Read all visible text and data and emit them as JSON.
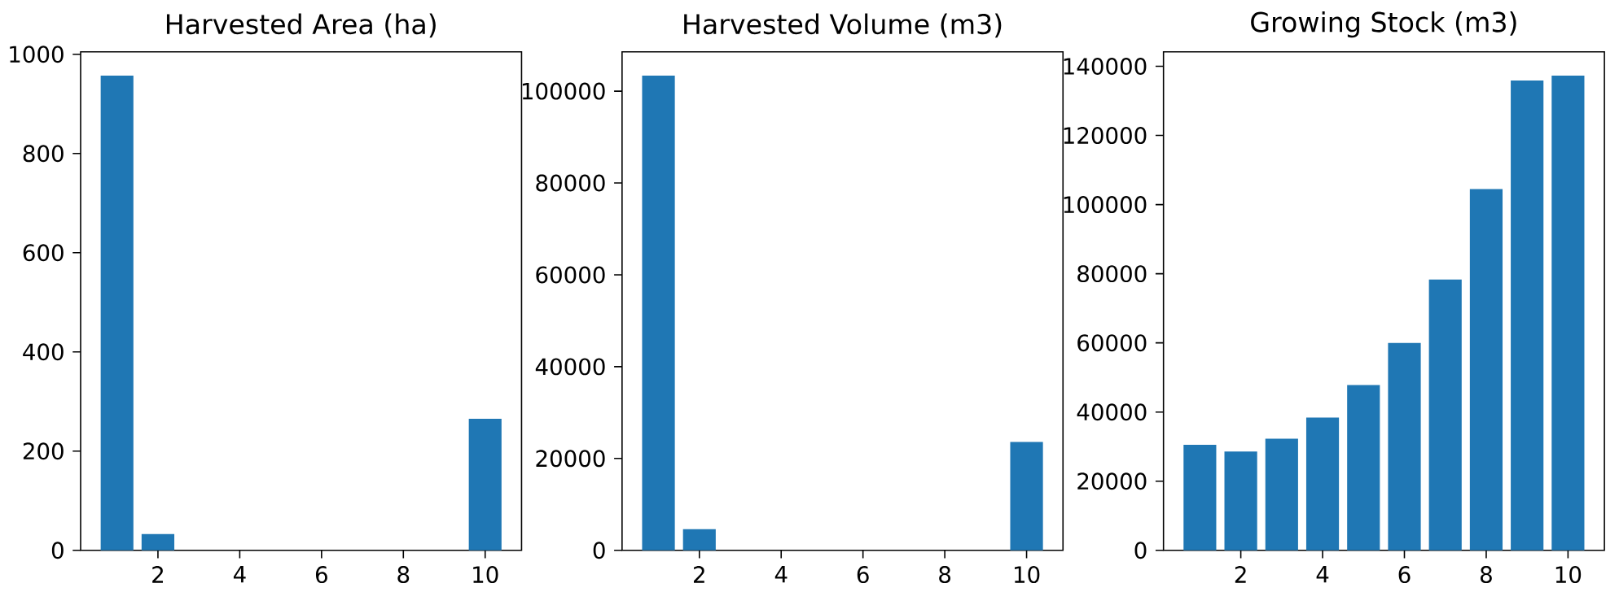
{
  "chart_data": [
    {
      "type": "bar",
      "title": "Harvested Area (ha)",
      "x": [
        1,
        2,
        3,
        4,
        5,
        6,
        7,
        8,
        9,
        10
      ],
      "values": [
        957,
        33,
        0,
        0,
        0,
        0,
        0,
        0,
        0,
        265
      ],
      "color": "#1f77b4",
      "xlim": [
        0.11,
        10.89
      ],
      "xticks": [
        2,
        4,
        6,
        8,
        10
      ],
      "ylim": [
        0,
        1005
      ],
      "yticks": [
        0,
        200,
        400,
        600,
        800,
        1000
      ]
    },
    {
      "type": "bar",
      "title": "Harvested Volume (m3)",
      "x": [
        1,
        2,
        3,
        4,
        5,
        6,
        7,
        8,
        9,
        10
      ],
      "values": [
        103400,
        4600,
        0,
        0,
        0,
        0,
        0,
        0,
        0,
        23600
      ],
      "color": "#1f77b4",
      "xlim": [
        0.11,
        10.89
      ],
      "xticks": [
        2,
        4,
        6,
        8,
        10
      ],
      "ylim": [
        0,
        108570
      ],
      "yticks": [
        0,
        20000,
        40000,
        60000,
        80000,
        100000
      ]
    },
    {
      "type": "bar",
      "title": "Growing Stock (m3)",
      "x": [
        1,
        2,
        3,
        4,
        5,
        6,
        7,
        8,
        9,
        10
      ],
      "values": [
        30500,
        28600,
        32300,
        38400,
        47800,
        60000,
        78300,
        104500,
        135900,
        137300
      ],
      "color": "#1f77b4",
      "xlim": [
        0.11,
        10.89
      ],
      "xticks": [
        2,
        4,
        6,
        8,
        10
      ],
      "ylim": [
        0,
        144200
      ],
      "yticks": [
        0,
        20000,
        40000,
        60000,
        80000,
        100000,
        120000,
        140000
      ]
    }
  ]
}
